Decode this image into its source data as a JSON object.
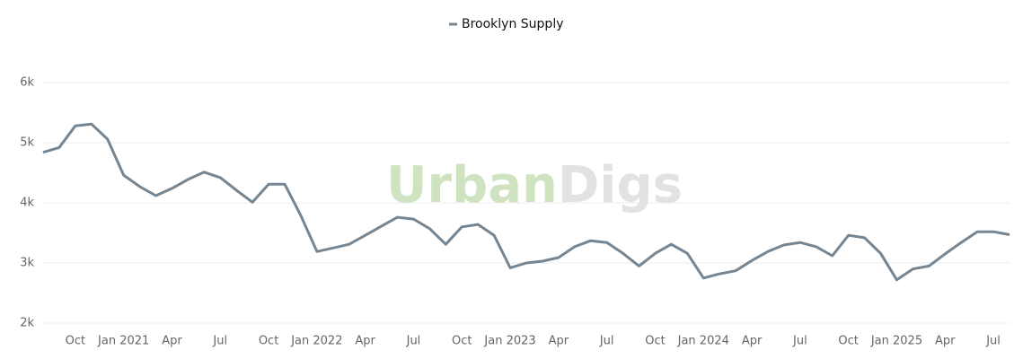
{
  "chart_data": {
    "type": "line",
    "watermark": {
      "first": "Urban",
      "second": "Digs"
    },
    "x": [
      "2020-08",
      "2020-09",
      "2020-10",
      "2020-11",
      "2020-12",
      "2021-01",
      "2021-02",
      "2021-03",
      "2021-04",
      "2021-05",
      "2021-06",
      "2021-07",
      "2021-08",
      "2021-09",
      "2021-10",
      "2021-11",
      "2021-12",
      "2022-01",
      "2022-02",
      "2022-03",
      "2022-04",
      "2022-05",
      "2022-06",
      "2022-07",
      "2022-08",
      "2022-09",
      "2022-10",
      "2022-11",
      "2022-12",
      "2023-01",
      "2023-02",
      "2023-03",
      "2023-04",
      "2023-05",
      "2023-06",
      "2023-07",
      "2023-08",
      "2023-09",
      "2023-10",
      "2023-11",
      "2023-12",
      "2024-01",
      "2024-02",
      "2024-03",
      "2024-04",
      "2024-05",
      "2024-06",
      "2024-07",
      "2024-08",
      "2024-09",
      "2024-10",
      "2024-11",
      "2024-12",
      "2025-01",
      "2025-02",
      "2025-03",
      "2025-04",
      "2025-05",
      "2025-06",
      "2025-07",
      "2025-08"
    ],
    "series": [
      {
        "name": "Brooklyn Supply",
        "color": "#758592",
        "values": [
          4840,
          4920,
          5280,
          5310,
          5060,
          4460,
          4270,
          4120,
          4240,
          4390,
          4510,
          4420,
          4210,
          4010,
          4310,
          4310,
          3790,
          3190,
          3250,
          3310,
          3460,
          3610,
          3760,
          3730,
          3570,
          3310,
          3600,
          3640,
          3460,
          2920,
          3000,
          3030,
          3090,
          3270,
          3370,
          3340,
          3160,
          2950,
          3160,
          3310,
          3160,
          2750,
          2820,
          2870,
          3040,
          3190,
          3300,
          3340,
          3270,
          3120,
          3460,
          3420,
          3160,
          2720,
          2900,
          2950,
          3150,
          3340,
          3520,
          3520,
          3470
        ]
      }
    ],
    "xlim": [
      "2020-08",
      "2025-08"
    ],
    "xticks": [
      {
        "value": "2020-10",
        "label": "Oct"
      },
      {
        "value": "2021-01",
        "label": "Jan 2021"
      },
      {
        "value": "2021-04",
        "label": "Apr"
      },
      {
        "value": "2021-07",
        "label": "Jul"
      },
      {
        "value": "2021-10",
        "label": "Oct"
      },
      {
        "value": "2022-01",
        "label": "Jan 2022"
      },
      {
        "value": "2022-04",
        "label": "Apr"
      },
      {
        "value": "2022-07",
        "label": "Jul"
      },
      {
        "value": "2022-10",
        "label": "Oct"
      },
      {
        "value": "2023-01",
        "label": "Jan 2023"
      },
      {
        "value": "2023-04",
        "label": "Apr"
      },
      {
        "value": "2023-07",
        "label": "Jul"
      },
      {
        "value": "2023-10",
        "label": "Oct"
      },
      {
        "value": "2024-01",
        "label": "Jan 2024"
      },
      {
        "value": "2024-04",
        "label": "Apr"
      },
      {
        "value": "2024-07",
        "label": "Jul"
      },
      {
        "value": "2024-10",
        "label": "Oct"
      },
      {
        "value": "2025-01",
        "label": "Jan 2025"
      },
      {
        "value": "2025-04",
        "label": "Apr"
      },
      {
        "value": "2025-07",
        "label": "Jul"
      }
    ],
    "ylim": [
      2000,
      6000
    ],
    "yticks": [
      {
        "value": 2000,
        "label": "2k"
      },
      {
        "value": 3000,
        "label": "3k"
      },
      {
        "value": 4000,
        "label": "4k"
      },
      {
        "value": 5000,
        "label": "5k"
      },
      {
        "value": 6000,
        "label": "6k"
      }
    ],
    "grid": true,
    "legend": "top"
  }
}
